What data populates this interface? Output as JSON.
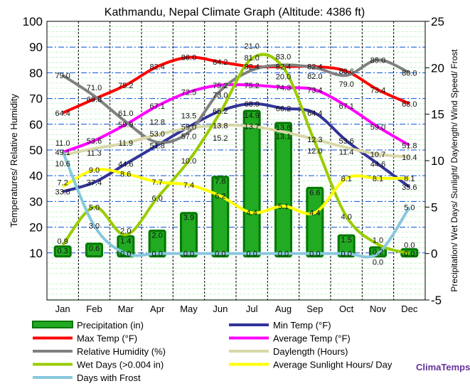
{
  "chart_data": {
    "type": "line",
    "title": "Kathmandu, Nepal Climate Graph (Altitude: 4386 ft)",
    "ylabel": "Temperatures/ Relative Humidity",
    "y2label": "Precipitation/ Wet Days/ Sunlight/ Daylength/ Wind Speed/ Frost",
    "categories": [
      "Jan",
      "Feb",
      "Mar",
      "Apr",
      "May",
      "Jun",
      "Jul",
      "Aug",
      "Sep",
      "Oct",
      "Nov",
      "Dec"
    ],
    "yticks": [
      "10",
      "20",
      "30",
      "40",
      "50",
      "60",
      "70",
      "80",
      "90",
      "100"
    ],
    "y2ticks": [
      "-5",
      "0",
      "5",
      "10",
      "15",
      "20",
      "25"
    ],
    "ylim": [
      -8.3,
      100
    ],
    "y2lim": [
      -5,
      25
    ],
    "series": [
      {
        "name": "Precipitation (in)",
        "type": "bar",
        "axis": "right",
        "color": "#22aa22",
        "values": [
          0.3,
          0.6,
          1.4,
          2.0,
          3.9,
          7.8,
          14.9,
          13.6,
          6.6,
          1.5,
          0.2,
          0.0
        ]
      },
      {
        "name": "Min Temp (°F)",
        "axis": "left",
        "color": "#333399",
        "values": [
          33.8,
          37.4,
          44.6,
          51.8,
          59.0,
          65.2,
          68.0,
          66.2,
          64.4,
          53.6,
          44.6,
          35.6
        ]
      },
      {
        "name": "Max Temp (°F)",
        "axis": "left",
        "color": "#ff0000",
        "values": [
          64.4,
          69.8,
          75.2,
          82.4,
          86.0,
          84.2,
          82.4,
          82.4,
          82.4,
          80.6,
          73.4,
          68.0
        ]
      },
      {
        "name": "Average Temp (°F)",
        "axis": "left",
        "color": "#ff00ff",
        "values": [
          49.1,
          53.6,
          59.9,
          67.1,
          72.5,
          75.2,
          75.2,
          74.3,
          73.4,
          67.1,
          59.0,
          51.8
        ]
      },
      {
        "name": "Relative Humidity (%)",
        "axis": "left",
        "color": "#808080",
        "values": [
          79.0,
          71.0,
          61.0,
          53.0,
          57.0,
          73.0,
          81.0,
          83.0,
          82.0,
          79.0,
          85.0,
          80.0
        ]
      },
      {
        "name": "Daylength (Hours)",
        "axis": "right",
        "color": "#d8d8a8",
        "values": [
          10.6,
          11.3,
          11.9,
          12.8,
          13.5,
          13.8,
          13.7,
          13.1,
          12.3,
          11.4,
          10.7,
          10.4
        ]
      },
      {
        "name": "Wet Days (>0.004 in)",
        "axis": "right",
        "color": "#99cc00",
        "values": [
          0.9,
          5.0,
          2.0,
          6.0,
          10.0,
          15.2,
          21.0,
          20.0,
          12.0,
          4.0,
          1.0,
          0.0
        ]
      },
      {
        "name": "Average Sunlight Hours/ Day",
        "axis": "right",
        "color": "#ffff00",
        "values": [
          7.2,
          9.0,
          8.6,
          7.7,
          7.4,
          6.2,
          4.4,
          5.1,
          4.4,
          8.1,
          8.1,
          8.1
        ]
      },
      {
        "name": "Days with Frost",
        "axis": "right",
        "color": "#88c8dd",
        "values": [
          11.0,
          3.0,
          0.0,
          0.0,
          0.0,
          0.0,
          0.0,
          0.0,
          0.0,
          0.0,
          0.0,
          5.0
        ]
      }
    ],
    "legend_placement": "bottom"
  },
  "brand": "ClimaTemps"
}
